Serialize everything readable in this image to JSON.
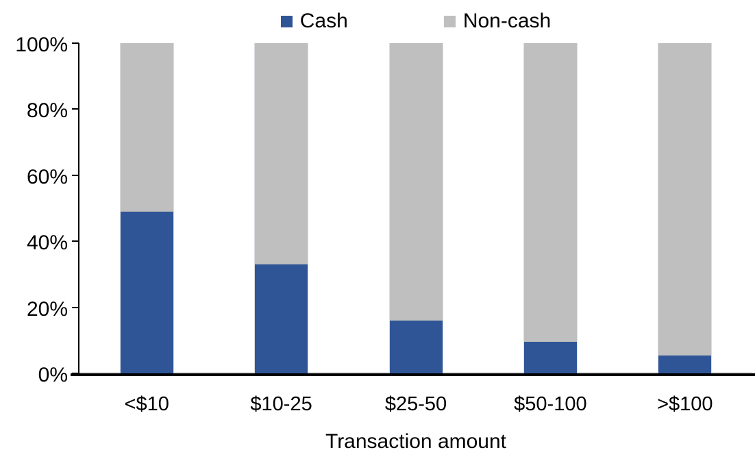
{
  "chart_data": {
    "type": "bar",
    "variant": "stacked-100-percent",
    "title": "",
    "xlabel": "Transaction amount",
    "ylabel": "",
    "categories": [
      "<$10",
      "$10-25",
      "$25-50",
      "$50-100",
      ">$100"
    ],
    "series": [
      {
        "name": "Cash",
        "color": "#2F5597",
        "values": [
          49,
          33,
          16,
          9.5,
          5.5
        ]
      },
      {
        "name": "Non-cash",
        "color": "#BFBFBF",
        "values": [
          51,
          67,
          84,
          90.5,
          94.5
        ]
      }
    ],
    "ylim": [
      0,
      100
    ],
    "ytick_values": [
      0,
      20,
      40,
      60,
      80,
      100
    ],
    "ytick_labels": [
      "0%",
      "20%",
      "40%",
      "60%",
      "80%",
      "100%"
    ],
    "grid": false,
    "legend_position": "top",
    "axis_color": "#000000",
    "background_color": "#FFFFFF"
  }
}
